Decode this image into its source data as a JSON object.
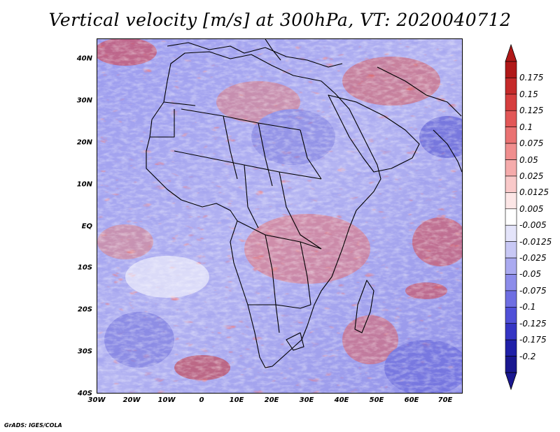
{
  "title": "Vertical velocity [m/s] at 300hPa, VT: 2020040712",
  "footer": "GrADS: IGES/COLA",
  "map": {
    "lat_labels": [
      "40N",
      "30N",
      "20N",
      "10N",
      "EQ",
      "10S",
      "20S",
      "30S",
      "40S"
    ],
    "lon_labels": [
      "30W",
      "20W",
      "10W",
      "0",
      "10E",
      "20E",
      "30E",
      "40E",
      "50E",
      "60E",
      "70E"
    ],
    "region": "Africa, Middle East and surrounding oceans",
    "field": "vertical velocity"
  },
  "colorbar": {
    "labels": [
      "0.175",
      "0.15",
      "0.125",
      "0.1",
      "0.075",
      "0.05",
      "0.025",
      "0.0125",
      "0.005",
      "-0.005",
      "-0.0125",
      "-0.025",
      "-0.05",
      "-0.075",
      "-0.1",
      "-0.125",
      "-0.175",
      "-0.2"
    ],
    "colors": [
      "#b01818",
      "#c52a2a",
      "#d63e3e",
      "#e25757",
      "#ea7272",
      "#f08e8e",
      "#f5abab",
      "#f9c9c9",
      "#fce6e6",
      "#ffffff",
      "#e4e4fa",
      "#c8c8f5",
      "#aaaaf0",
      "#8c8cea",
      "#6e6ee2",
      "#5050d8",
      "#3535c4",
      "#2020a8",
      "#1a1890"
    ],
    "top_cap_color": "#b01818",
    "bottom_cap_color": "#1a1890"
  },
  "colors": {
    "positive": "#e05a5a",
    "negative": "#6a6ae0",
    "neutral": "#ffffff",
    "coastline": "#000000"
  }
}
